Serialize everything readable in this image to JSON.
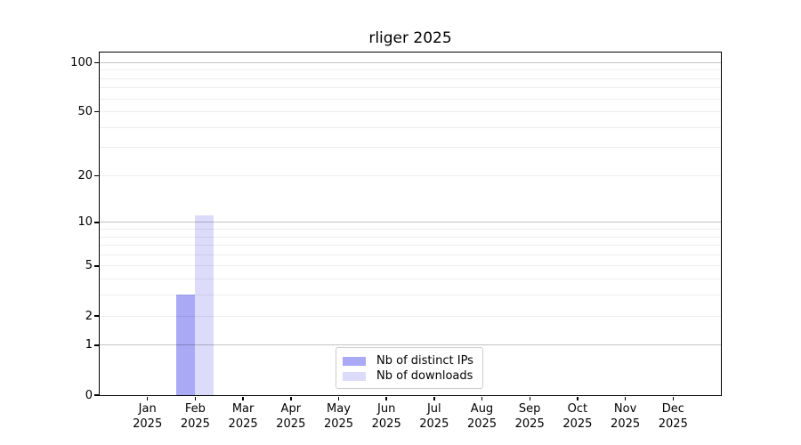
{
  "title": "rliger 2025",
  "chart_data": {
    "type": "bar",
    "title": "rliger 2025",
    "x_tick_line2": "2025",
    "categories": [
      "Jan",
      "Feb",
      "Mar",
      "Apr",
      "May",
      "Jun",
      "Jul",
      "Aug",
      "Sep",
      "Oct",
      "Nov",
      "Dec"
    ],
    "series": [
      {
        "name": "Nb of distinct IPs",
        "color": "#a9a9f6",
        "values": [
          0,
          3,
          0,
          0,
          0,
          0,
          0,
          0,
          0,
          0,
          0,
          0
        ]
      },
      {
        "name": "Nb of downloads",
        "color": "#dcdcfa",
        "values": [
          0,
          11,
          0,
          0,
          0,
          0,
          0,
          0,
          0,
          0,
          0,
          0
        ]
      }
    ],
    "xlabel": "",
    "ylabel": "",
    "y_axis": {
      "scale": "log10(1+v)",
      "ylim": [
        0,
        115
      ],
      "major_ticks": [
        0,
        1,
        2,
        5,
        10,
        20,
        50,
        100
      ],
      "major_gridlines": [
        1,
        10,
        100
      ],
      "minor_gridlines": [
        2,
        3,
        4,
        5,
        6,
        7,
        8,
        9,
        20,
        30,
        40,
        50,
        60,
        70,
        80,
        90
      ]
    },
    "legend": {
      "position": "lower center",
      "entries": [
        "Nb of distinct IPs",
        "Nb of downloads"
      ]
    },
    "grid": "on"
  }
}
